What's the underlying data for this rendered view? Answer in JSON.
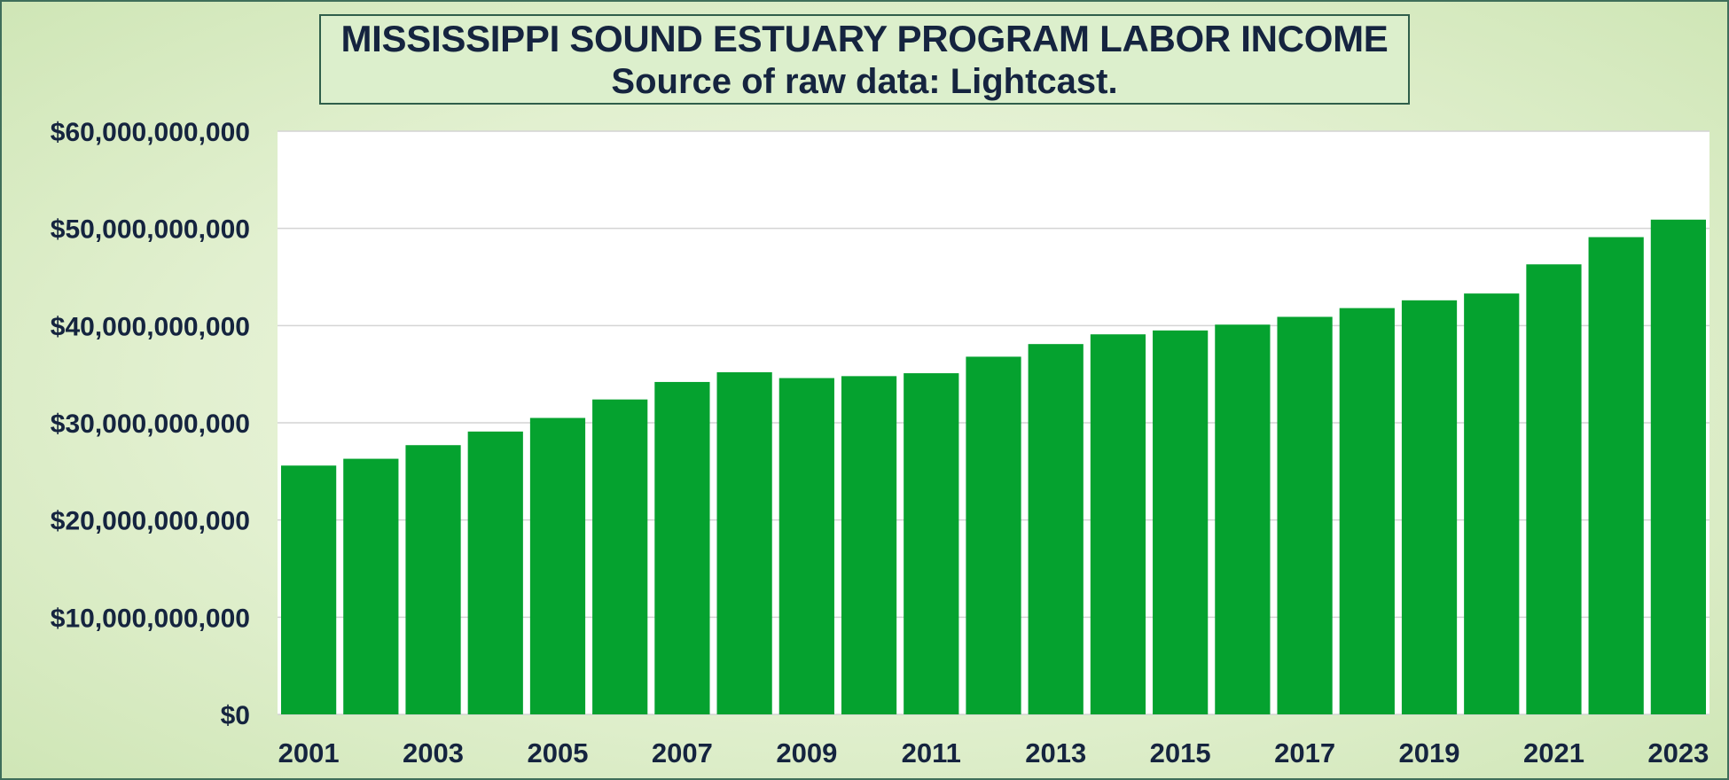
{
  "chart_data": {
    "type": "bar",
    "title": "MISSISSIPPI SOUND ESTUARY PROGRAM LABOR INCOME",
    "subtitle": "Source of raw data: Lightcast.",
    "xlabel": "",
    "ylabel": "",
    "categories": [
      "2001",
      "2002",
      "2003",
      "2004",
      "2005",
      "2006",
      "2007",
      "2008",
      "2009",
      "2010",
      "2011",
      "2012",
      "2013",
      "2014",
      "2015",
      "2016",
      "2017",
      "2018",
      "2019",
      "2020",
      "2021",
      "2022",
      "2023"
    ],
    "x_tick_labels": [
      "2001",
      "2003",
      "2005",
      "2007",
      "2009",
      "2011",
      "2013",
      "2015",
      "2017",
      "2019",
      "2021",
      "2023"
    ],
    "values": [
      25600000000,
      26300000000,
      27700000000,
      29100000000,
      30500000000,
      32400000000,
      34200000000,
      35200000000,
      34600000000,
      34800000000,
      35100000000,
      36800000000,
      38100000000,
      39100000000,
      39500000000,
      40100000000,
      40900000000,
      41800000000,
      42600000000,
      43300000000,
      46300000000,
      49100000000,
      50900000000
    ],
    "y_tick_labels": [
      "$0",
      "$10,000,000,000",
      "$20,000,000,000",
      "$30,000,000,000",
      "$40,000,000,000",
      "$50,000,000,000",
      "$60,000,000,000"
    ],
    "ylim": [
      0,
      60000000000
    ],
    "grid": true,
    "legend": "none",
    "bar_color": "#05a22f",
    "plot_background": "#ffffff",
    "text_color": "#15243f"
  }
}
